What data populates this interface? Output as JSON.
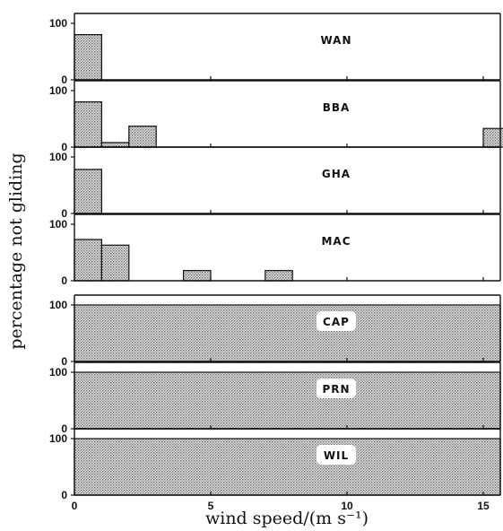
{
  "chart_data": {
    "type": "bar",
    "xlabel": "wind speed/(m s⁻¹)",
    "ylabel": "percentage not gliding",
    "xlim": [
      0,
      15.7
    ],
    "xticks": [
      "0",
      "5",
      "10",
      "15"
    ],
    "ylim": [
      0,
      100
    ],
    "yticks": [
      "0",
      "100"
    ],
    "bin_width": 1,
    "colors": {
      "fill": "#c8c8c8",
      "stroke": "#111111"
    },
    "panels": [
      {
        "name": "WAN",
        "bars": [
          {
            "x": 0,
            "value": 80
          }
        ]
      },
      {
        "name": "BBA",
        "bars": [
          {
            "x": 0,
            "value": 80
          },
          {
            "x": 1,
            "value": 8
          },
          {
            "x": 2,
            "value": 37
          },
          {
            "x": 15,
            "value": 33
          }
        ]
      },
      {
        "name": "GHA",
        "bars": [
          {
            "x": 0,
            "value": 78
          }
        ]
      },
      {
        "name": "MAC",
        "bars": [
          {
            "x": 0,
            "value": 73
          },
          {
            "x": 1,
            "value": 63
          },
          {
            "x": 4,
            "value": 18
          },
          {
            "x": 7,
            "value": 18
          }
        ]
      },
      {
        "name": "CAP",
        "full": true,
        "value": 100
      },
      {
        "name": "PRN",
        "full": true,
        "value": 100
      },
      {
        "name": "WIL",
        "full": true,
        "value": 100
      }
    ]
  }
}
